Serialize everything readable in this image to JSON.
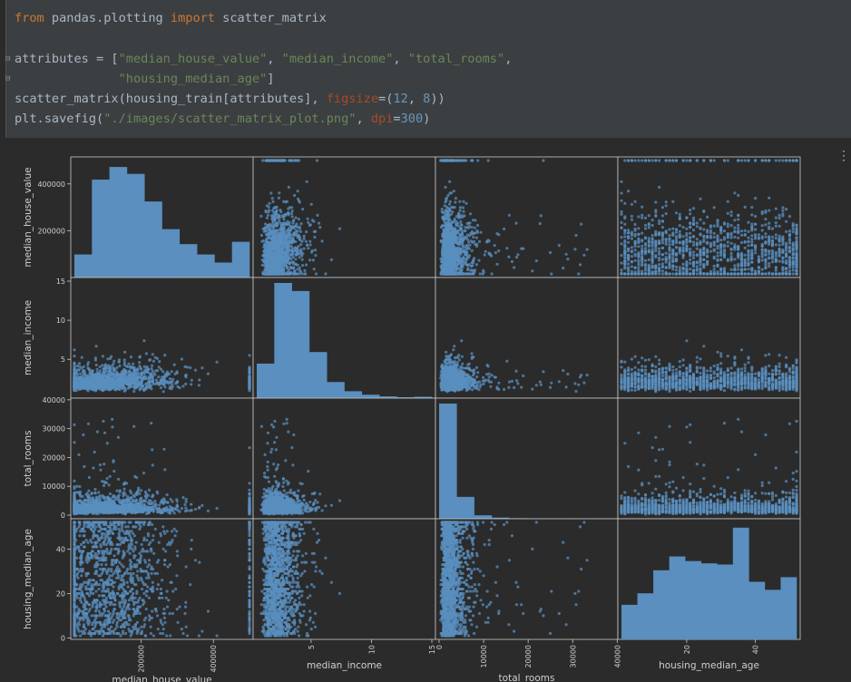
{
  "code": {
    "lines": [
      [
        {
          "t": "from",
          "c": "kw"
        },
        {
          "t": " pandas.plotting ",
          "c": ""
        },
        {
          "t": "import",
          "c": "kw"
        },
        {
          "t": " scatter_matrix",
          "c": ""
        }
      ],
      [],
      [
        {
          "t": "attributes = [",
          "c": ""
        },
        {
          "t": "\"median_house_value\"",
          "c": "str"
        },
        {
          "t": ", ",
          "c": ""
        },
        {
          "t": "\"median_income\"",
          "c": "str"
        },
        {
          "t": ", ",
          "c": ""
        },
        {
          "t": "\"total_rooms\"",
          "c": "str"
        },
        {
          "t": ",",
          "c": ""
        }
      ],
      [
        {
          "t": "              ",
          "c": ""
        },
        {
          "t": "\"housing_median_age\"",
          "c": "str"
        },
        {
          "t": "]",
          "c": ""
        }
      ],
      [
        {
          "t": "scatter_matrix(housing_train[attributes], ",
          "c": ""
        },
        {
          "t": "figsize",
          "c": "kwarg"
        },
        {
          "t": "=(",
          "c": ""
        },
        {
          "t": "12",
          "c": "num"
        },
        {
          "t": ", ",
          "c": ""
        },
        {
          "t": "8",
          "c": "num"
        },
        {
          "t": "))",
          "c": ""
        }
      ],
      [
        {
          "t": "plt.savefig(",
          "c": ""
        },
        {
          "t": "\"./images/scatter_matrix_plot.png\"",
          "c": "str"
        },
        {
          "t": ", ",
          "c": ""
        },
        {
          "t": "dpi",
          "c": "kwarg"
        },
        {
          "t": "=",
          "c": ""
        },
        {
          "t": "300",
          "c": "num"
        },
        {
          "t": ")",
          "c": ""
        }
      ]
    ]
  },
  "output": {
    "more_icon": "⋮"
  },
  "chart_data": {
    "type": "scatter_matrix",
    "variables": [
      "median_house_value",
      "median_income",
      "total_rooms",
      "housing_median_age"
    ],
    "ranges": {
      "median_house_value": [
        14999,
        500001
      ],
      "median_income": [
        0.5,
        15.0
      ],
      "total_rooms": [
        2,
        39320
      ],
      "housing_median_age": [
        1,
        52
      ]
    },
    "y_ticks": {
      "median_house_value": [
        {
          "v": 200000,
          "label": "200000"
        },
        {
          "v": 400000,
          "label": "400000"
        }
      ],
      "median_income": [
        {
          "v": 5,
          "label": "5"
        },
        {
          "v": 10,
          "label": "10"
        },
        {
          "v": 15,
          "label": "15"
        }
      ],
      "total_rooms": [
        {
          "v": 0,
          "label": "0"
        },
        {
          "v": 10000,
          "label": "10000"
        },
        {
          "v": 20000,
          "label": "20000"
        },
        {
          "v": 30000,
          "label": "30000"
        },
        {
          "v": 40000,
          "label": "40000"
        }
      ],
      "housing_median_age": [
        {
          "v": 0,
          "label": "0"
        },
        {
          "v": 20,
          "label": "20"
        },
        {
          "v": 40,
          "label": "40"
        }
      ]
    },
    "x_ticks": {
      "median_house_value": [
        {
          "v": 200000,
          "label": "200000"
        },
        {
          "v": 400000,
          "label": "400000"
        }
      ],
      "median_income": [
        {
          "v": 5,
          "label": "5"
        },
        {
          "v": 10,
          "label": "10"
        },
        {
          "v": 15,
          "label": "15"
        }
      ],
      "total_rooms": [
        {
          "v": 0,
          "label": "0"
        },
        {
          "v": 10000,
          "label": "10000"
        },
        {
          "v": 20000,
          "label": "20000"
        },
        {
          "v": 30000,
          "label": "30000"
        },
        {
          "v": 40000,
          "label": "40000"
        }
      ],
      "housing_median_age": [
        {
          "v": 20,
          "label": "20"
        },
        {
          "v": 40,
          "label": "40"
        }
      ]
    },
    "histograms": {
      "median_house_value": [
        0.2,
        0.85,
        0.96,
        0.9,
        0.66,
        0.42,
        0.29,
        0.2,
        0.13,
        0.31
      ],
      "median_income": [
        0.3,
        1.0,
        0.93,
        0.4,
        0.14,
        0.06,
        0.03,
        0.015,
        0.008,
        0.012
      ],
      "total_rooms": [
        1.0,
        0.19,
        0.03,
        0.01,
        0.005,
        0.003,
        0.002,
        0.001,
        0.0008,
        0.0008
      ],
      "housing_median_age": [
        0.3,
        0.4,
        0.6,
        0.72,
        0.68,
        0.66,
        0.65,
        0.97,
        0.5,
        0.43,
        0.54
      ]
    },
    "color": "#5a8fbf",
    "grid": false,
    "legend": "none"
  }
}
